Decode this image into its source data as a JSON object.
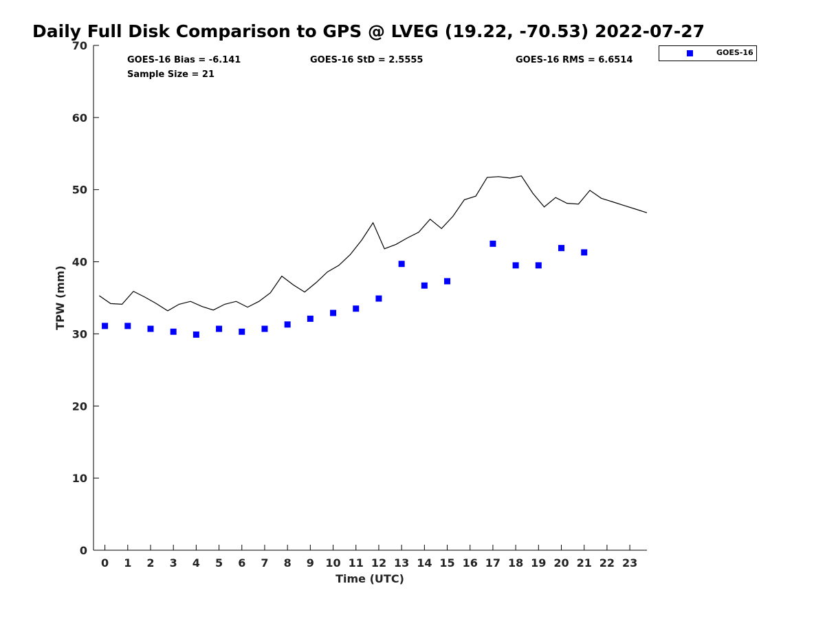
{
  "title": "Daily Full Disk Comparison to GPS @ LVEG (19.22, -70.53) 2022-07-27",
  "stats": {
    "bias": "GOES-16 Bias = -6.141",
    "std": "GOES-16 StD = 2.5555",
    "rms": "GOES-16 RMS = 6.6514",
    "sample_size": "Sample Size = 21"
  },
  "legend": {
    "label": "GOES-16",
    "color": "#0000ff"
  },
  "chart_data": {
    "type": "scatter",
    "title": "Daily Full Disk Comparison to GPS @ LVEG (19.22, -70.53) 2022-07-27",
    "xlabel": "Time (UTC)",
    "ylabel": "TPW (mm)",
    "xlim": [
      -0.5,
      23.75
    ],
    "ylim": [
      0,
      70
    ],
    "xticks": [
      0,
      1,
      2,
      3,
      4,
      5,
      6,
      7,
      8,
      9,
      10,
      11,
      12,
      13,
      14,
      15,
      16,
      17,
      18,
      19,
      20,
      21,
      22,
      23
    ],
    "yticks": [
      0,
      10,
      20,
      30,
      40,
      50,
      60,
      70
    ],
    "grid": false,
    "legend_position": "top-right outside",
    "series": [
      {
        "name": "GOES-16",
        "type": "scatter",
        "marker": "square",
        "color": "#0000ff",
        "x": [
          0,
          1,
          2,
          3,
          4,
          5,
          6,
          7,
          8,
          9,
          10,
          11,
          12,
          13,
          14,
          15,
          17,
          18,
          19,
          20,
          21
        ],
        "y": [
          31.1,
          31.1,
          30.7,
          30.3,
          29.9,
          30.7,
          30.3,
          30.7,
          31.3,
          32.1,
          32.9,
          33.5,
          34.9,
          39.7,
          36.7,
          37.3,
          42.5,
          39.5,
          39.5,
          41.9,
          41.3
        ]
      },
      {
        "type": "line",
        "color": "#000000",
        "x": [
          -0.25,
          0.25,
          0.75,
          1.25,
          1.75,
          2.25,
          2.75,
          3.25,
          3.75,
          4.25,
          4.75,
          5.25,
          5.75,
          6.25,
          6.75,
          7.25,
          7.75,
          8.25,
          8.75,
          9.25,
          9.75,
          10.25,
          10.75,
          11.25,
          11.75,
          12.25,
          12.75,
          13.25,
          13.75,
          14.25,
          14.75,
          15.25,
          15.75,
          16.25,
          16.75,
          17.25,
          17.75,
          18.25,
          18.75,
          19.25,
          19.75,
          20.25,
          20.75,
          21.25,
          21.75,
          22.25,
          22.75,
          23.25,
          23.75
        ],
        "y": [
          35.3,
          34.2,
          34.1,
          35.9,
          35.1,
          34.2,
          33.2,
          34.1,
          34.5,
          33.8,
          33.3,
          34.1,
          34.5,
          33.7,
          34.5,
          35.7,
          38.0,
          36.8,
          35.8,
          37.1,
          38.6,
          39.5,
          41.0,
          43.0,
          45.4,
          41.8,
          42.4,
          43.3,
          44.1,
          45.9,
          44.6,
          46.3,
          48.6,
          49.1,
          51.7,
          51.8,
          51.6,
          51.9,
          49.5,
          47.6,
          48.9,
          48.1,
          48.0,
          49.9,
          48.8,
          48.3,
          47.8,
          47.3,
          46.8
        ]
      }
    ]
  }
}
